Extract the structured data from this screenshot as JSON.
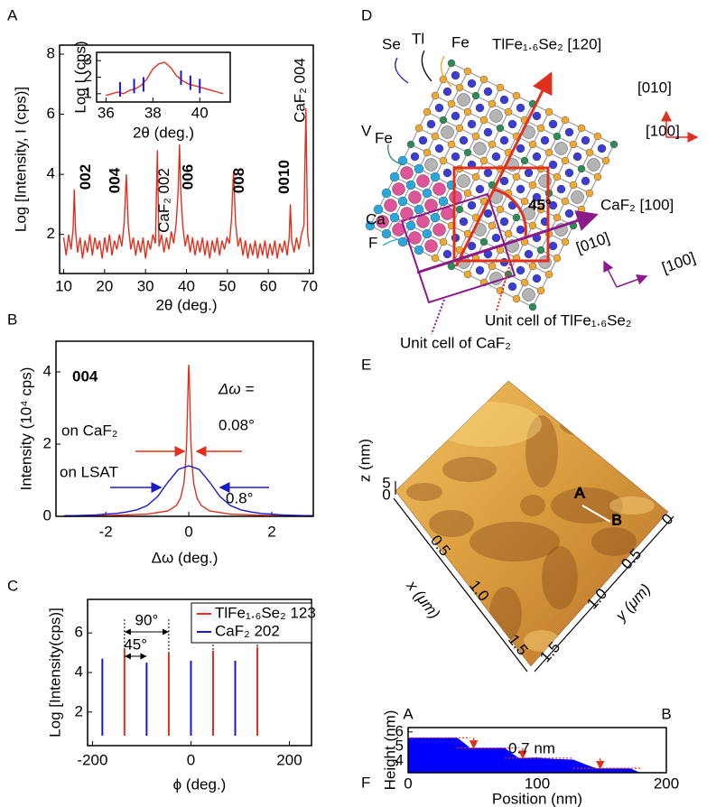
{
  "chart_data": [
    {
      "type": "line",
      "panel_label": "A",
      "xlabel": "2θ (deg.)",
      "ylabel": "Log [Intensity, I (cps)]",
      "xlim": [
        9,
        71
      ],
      "ylim": [
        0.7,
        8.3
      ],
      "xticks": [
        10,
        20,
        30,
        40,
        50,
        60,
        70
      ],
      "yticks": [
        2,
        4,
        6,
        8
      ],
      "series": [
        {
          "color": "#e0301e",
          "x": [
            10,
            10.6,
            11.2,
            11.8,
            12.3,
            12.6,
            12.9,
            13.4,
            14,
            14.6,
            15.2,
            15.8,
            16.4,
            17,
            17.6,
            18.2,
            18.8,
            19.4,
            20,
            20.6,
            21.2,
            21.8,
            22.4,
            23,
            23.6,
            24.2,
            24.8,
            25.3,
            25.8,
            26.4,
            27,
            27.6,
            28.2,
            28.8,
            29.4,
            30,
            30.6,
            31.2,
            31.8,
            32.4,
            32.9,
            33.3,
            33.9,
            34.5,
            35.1,
            35.7,
            36.3,
            36.9,
            37.5,
            38,
            38.3,
            38.6,
            39.1,
            39.7,
            40.3,
            40.9,
            41.5,
            42.1,
            42.7,
            43.3,
            43.9,
            44.5,
            45.1,
            45.7,
            46.3,
            46.9,
            47.5,
            48.1,
            48.7,
            49.3,
            49.9,
            50.5,
            51,
            51.5,
            52,
            52.6,
            53.2,
            53.8,
            54.4,
            55,
            55.6,
            56.2,
            56.8,
            57.4,
            58,
            58.6,
            59.2,
            59.8,
            60.4,
            61,
            61.6,
            62.2,
            62.8,
            63.4,
            64,
            64.6,
            65.1,
            65.4,
            65.7,
            66.3,
            66.9,
            67.5,
            68.1,
            68.7,
            69.2,
            69.6,
            70
          ],
          "values": [
            1.9,
            1.3,
            2.0,
            1.5,
            2.2,
            3.5,
            2.1,
            1.4,
            1.9,
            1.2,
            1.8,
            1.4,
            2.0,
            1.3,
            1.9,
            1.5,
            1.8,
            1.2,
            1.9,
            1.4,
            2.0,
            1.3,
            1.8,
            1.5,
            2.0,
            1.6,
            2.4,
            4.0,
            2.3,
            1.5,
            1.9,
            1.3,
            1.8,
            1.4,
            1.9,
            1.2,
            1.8,
            1.5,
            2.0,
            1.7,
            4.8,
            1.6,
            2.0,
            1.4,
            1.9,
            1.5,
            2.1,
            1.7,
            2.4,
            3.5,
            5.0,
            3.4,
            2.3,
            1.6,
            2.0,
            1.4,
            1.9,
            1.3,
            1.8,
            1.4,
            1.9,
            1.3,
            1.8,
            1.2,
            1.8,
            1.4,
            1.9,
            1.3,
            1.8,
            1.5,
            1.9,
            1.7,
            2.5,
            4.1,
            2.4,
            1.6,
            1.9,
            1.3,
            1.8,
            1.2,
            1.7,
            1.3,
            1.8,
            1.2,
            1.7,
            1.3,
            1.8,
            1.2,
            1.7,
            1.3,
            1.8,
            1.2,
            1.7,
            1.4,
            1.8,
            1.3,
            1.9,
            3.0,
            1.8,
            1.4,
            1.9,
            1.5,
            2.0,
            2.3,
            6.2,
            2.0,
            1.6
          ]
        }
      ],
      "peak_labels": [
        {
          "text": "002",
          "x": 12.6,
          "color": "#1a1acc"
        },
        {
          "text": "004",
          "x": 25.3,
          "color": "#1a1acc"
        },
        {
          "text": "CaF₂ 002",
          "x": 32.9,
          "color": "#000000"
        },
        {
          "text": "006",
          "x": 38.3,
          "color": "#1a1acc"
        },
        {
          "text": "008",
          "x": 51.5,
          "color": "#1a1acc"
        },
        {
          "text": "0010",
          "x": 65.4,
          "color": "#1a1acc"
        },
        {
          "text": "CaF₂ 004",
          "x": 69.2,
          "color": "#000000"
        }
      ],
      "inset": {
        "type": "line",
        "xlabel": "2θ (deg.)",
        "ylabel": "Log I (cps)",
        "xlim": [
          35.6,
          41.3
        ],
        "ylim": [
          0.5,
          3.5
        ],
        "xticks": [
          36,
          38,
          40
        ],
        "yticks": [
          1,
          2,
          3
        ],
        "series": [
          {
            "color": "#e0301e",
            "x": [
              36,
              36.25,
              36.5,
              36.75,
              37,
              37.25,
              37.5,
              37.75,
              38,
              38.25,
              38.5,
              38.75,
              39,
              39.25,
              39.5,
              39.75,
              40,
              40.25,
              40.5,
              40.75,
              41
            ],
            "values": [
              0.9,
              1.0,
              1.1,
              1.0,
              1.2,
              1.3,
              1.5,
              1.9,
              2.5,
              2.8,
              2.9,
              2.6,
              2.1,
              1.8,
              1.6,
              1.5,
              1.4,
              1.3,
              1.2,
              1.1,
              1.0
            ]
          },
          {
            "mark": "tick",
            "color": "#1a1acc",
            "x": [
              36.6,
              37.2,
              37.6,
              39.2,
              39.6,
              40.0
            ],
            "values": [
              1.7,
              1.9,
              2.0,
              2.4,
              2.1,
              1.9
            ]
          }
        ]
      }
    },
    {
      "type": "line",
      "panel_label": "B",
      "xlabel": "Δω (deg.)",
      "ylabel": "Intensity (10⁴ cps)",
      "xlim": [
        -3.2,
        3
      ],
      "ylim": [
        0,
        4.85
      ],
      "xticks": [
        -2,
        0,
        2
      ],
      "yticks": [
        0,
        2,
        4
      ],
      "series": [
        {
          "name": "on CaF₂",
          "color": "#e0301e",
          "x": [
            -3,
            -2,
            -1,
            -0.5,
            -0.3,
            -0.2,
            -0.12,
            -0.08,
            -0.05,
            -0.03,
            -0.01,
            0,
            0.01,
            0.03,
            0.05,
            0.08,
            0.12,
            0.2,
            0.3,
            0.5,
            1,
            2,
            3
          ],
          "values": [
            0,
            0.02,
            0.06,
            0.15,
            0.3,
            0.5,
            0.9,
            1.4,
            2.1,
            3.0,
            3.9,
            4.2,
            3.9,
            3.0,
            2.1,
            1.4,
            0.9,
            0.5,
            0.3,
            0.15,
            0.06,
            0.02,
            0
          ]
        },
        {
          "name": "on LSAT",
          "color": "#1a1acc",
          "x": [
            -3,
            -2.75,
            -2.5,
            -2.25,
            -2,
            -1.75,
            -1.5,
            -1.25,
            -1,
            -0.75,
            -0.5,
            -0.25,
            0,
            0.25,
            0.5,
            0.75,
            1,
            1.25,
            1.5,
            1.75,
            2,
            2.25,
            2.5,
            2.75,
            3
          ],
          "values": [
            0.02,
            0.02,
            0.03,
            0.04,
            0.06,
            0.08,
            0.12,
            0.18,
            0.3,
            0.55,
            0.95,
            1.3,
            1.4,
            1.3,
            0.95,
            0.55,
            0.3,
            0.18,
            0.12,
            0.08,
            0.06,
            0.04,
            0.03,
            0.02,
            0.02
          ]
        }
      ],
      "annotations": [
        "004",
        "Δω =",
        "0.08°",
        "0.8°"
      ]
    },
    {
      "type": "spike",
      "panel_label": "C",
      "xlabel": "ϕ (deg.)",
      "ylabel": "Log [Intensity(cps)]",
      "xlim": [
        -210,
        245
      ],
      "ylim": [
        0.3,
        7.7
      ],
      "xticks": [
        -200,
        0,
        200
      ],
      "yticks": [
        2,
        4,
        6
      ],
      "baseline": 0.8,
      "series": [
        {
          "name": "TlFe₁.₆Se₂ 123",
          "color": "#e0301e",
          "x": [
            -135,
            -45,
            45,
            135
          ],
          "values": [
            5.2,
            5.0,
            5.1,
            5.3
          ]
        },
        {
          "name": "CaF₂ 202",
          "color": "#1a1acc",
          "x": [
            -180,
            -90,
            0,
            90
          ],
          "values": [
            4.7,
            4.5,
            4.6,
            4.6
          ]
        }
      ],
      "annotations": [
        "90°",
        "45°"
      ]
    },
    {
      "type": "area",
      "panel_label": "F",
      "xlabel": "Position (nm)",
      "ylabel": "Height (nm)",
      "xlim": [
        0,
        200
      ],
      "ylim": [
        3.2,
        6.3
      ],
      "xticks": [
        0,
        100,
        200
      ],
      "yticks": [
        4,
        5,
        6
      ],
      "series": [
        {
          "color": "#0000ff",
          "x": [
            0,
            38,
            44,
            48,
            75,
            80,
            86,
            100,
            112,
            128,
            138,
            146,
            172,
            180
          ],
          "values": [
            5.6,
            5.6,
            5.2,
            4.9,
            4.9,
            4.55,
            4.2,
            4.25,
            4.15,
            4.1,
            3.75,
            3.5,
            3.5,
            3.2
          ]
        }
      ],
      "annotations": [
        "A",
        "B",
        "0.7 nm"
      ]
    }
  ],
  "diagram": {
    "label": "D",
    "atoms": {
      "se": "Se",
      "tl": "Tl",
      "fe": "Fe",
      "v": "V",
      "v_sub": "Fe",
      "ca": "Ca",
      "f": "F"
    },
    "angle": "45°",
    "tlfese_direction": "TlFe₁.₆Se₂ [120]",
    "tlfese_axes": [
      "[010]",
      "[100]"
    ],
    "caf2_direction": "CaF₂ [100]",
    "caf2_axes": [
      "[010]",
      "[100]"
    ],
    "unit_cell_tlfese": "Unit cell of TlFe₁.₆Se₂",
    "unit_cell_caf2": "Unit cell of CaF₂"
  },
  "afm": {
    "label": "E",
    "z_label": "z (nm)",
    "z_ticks": [
      "5",
      "0"
    ],
    "x_label": "x (μm)",
    "x_ticks": [
      "0.5",
      "1.0",
      "1.5"
    ],
    "y_label": "y (μm)",
    "y_ticks": [
      "0",
      "0.5",
      "1.0",
      "1.5"
    ],
    "point_a": "A",
    "point_b": "B"
  }
}
